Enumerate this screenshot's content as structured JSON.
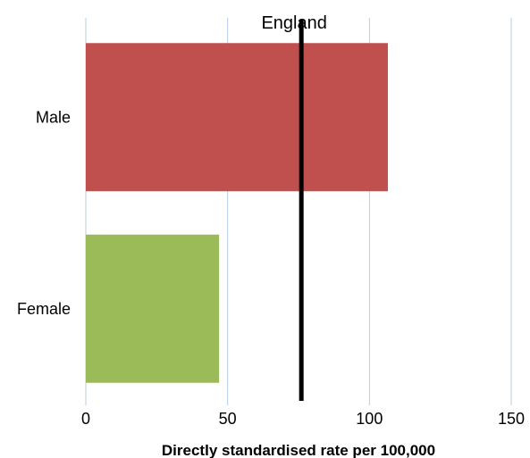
{
  "chart_data": {
    "type": "bar",
    "orientation": "horizontal",
    "categories": [
      "Male",
      "Female"
    ],
    "values": [
      106.5,
      47
    ],
    "colors": [
      "#c0504d",
      "#9bbb59"
    ],
    "xlabel": "Directly standardised rate per 100,000",
    "xlim": [
      0,
      150
    ],
    "xticks": [
      0,
      50,
      100,
      150
    ],
    "grid": "vertical",
    "reference_line": {
      "label": "England",
      "value": 76,
      "color": "#000000"
    }
  }
}
